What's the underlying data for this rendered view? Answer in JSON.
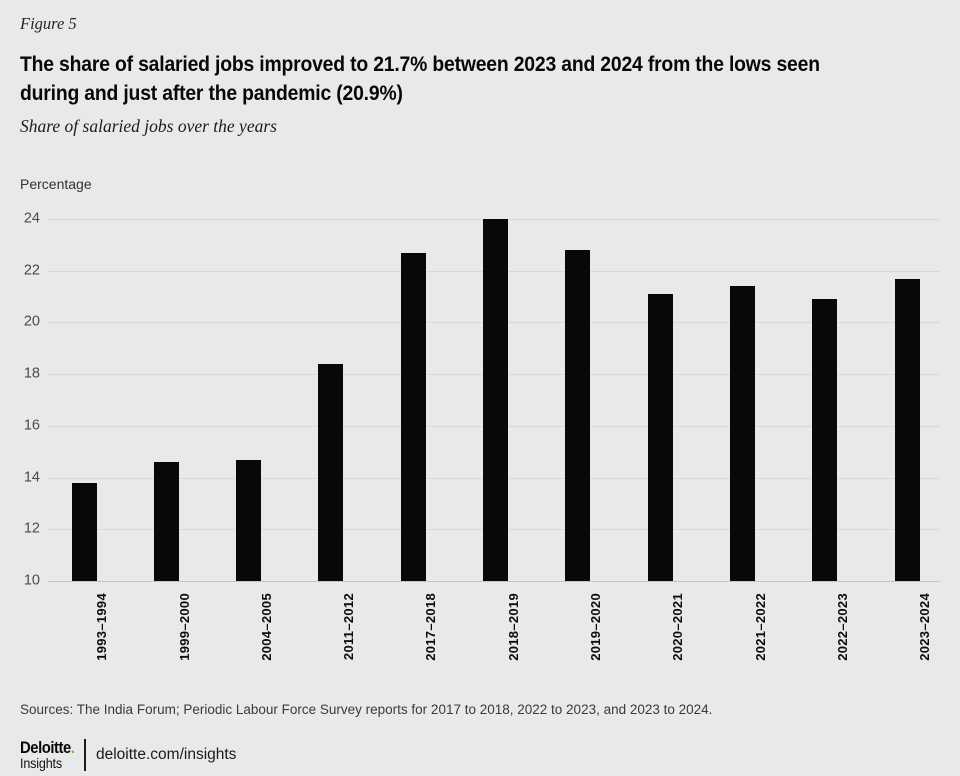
{
  "page": {
    "figure_label": "Figure 5",
    "title": "The share of salaried jobs improved to 21.7% between 2023 and 2024 from the lows seen\nduring and just after the pandemic (20.9%)",
    "subtitle": "Share of salaried jobs over the years",
    "sources": "Sources: The India Forum; Periodic Labour Force Survey reports for 2017 to 2018, 2022 to 2023, and 2023 to 2024.",
    "background_color": "#e8e9ea",
    "footer": {
      "brand_name": "Deloitte",
      "brand_dot": ".",
      "brand_dot_color": "#86bc25",
      "brand_sub": "Insights",
      "url": "deloitte.com/insights"
    }
  },
  "chart_data": {
    "type": "bar",
    "title": "Share of salaried jobs over the years",
    "xlabel": "",
    "ylabel": "Percentage",
    "categories": [
      "1993–1994",
      "1999–2000",
      "2004–2005",
      "2011–2012",
      "2017–2018",
      "2018–2019",
      "2019–2020",
      "2020–2021",
      "2021–2022",
      "2022–2023",
      "2023–2024"
    ],
    "values": [
      13.8,
      14.6,
      14.7,
      18.4,
      22.7,
      24.0,
      22.8,
      21.1,
      21.4,
      20.9,
      21.7
    ],
    "ylim": [
      10,
      24
    ],
    "yticks": [
      10,
      12,
      14,
      16,
      18,
      20,
      22,
      24
    ],
    "grid": true,
    "legend": false,
    "bar_color": "#070809",
    "grid_color": "#d7d8d9",
    "baseline_color": "#c3c5c6"
  }
}
